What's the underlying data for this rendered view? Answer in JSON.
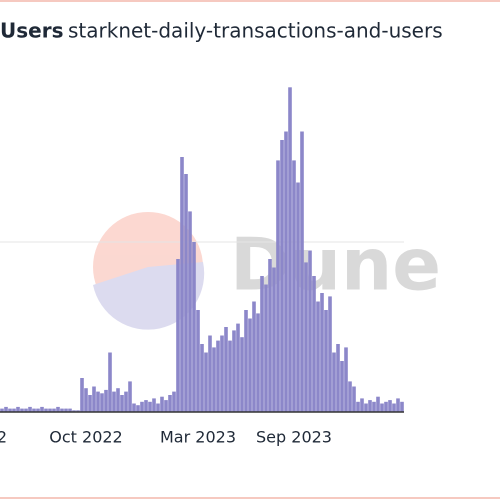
{
  "title": "Users",
  "subtitle": "starknet-daily-transactions-and-users",
  "watermark": "Dune",
  "chart_data": {
    "type": "bar",
    "color": "#8c87c9",
    "categories": [
      "2",
      null,
      null,
      null,
      null,
      null,
      null,
      null,
      null,
      null,
      null,
      null,
      null,
      null,
      null,
      null,
      null,
      null,
      null,
      null,
      null,
      "Oct 2022",
      null,
      null,
      null,
      null,
      null,
      null,
      null,
      null,
      null,
      null,
      null,
      null,
      null,
      null,
      null,
      null,
      null,
      null,
      null,
      null,
      null,
      null,
      null,
      null,
      null,
      null,
      null,
      "Mar 2023",
      null,
      null,
      null,
      null,
      null,
      null,
      null,
      null,
      null,
      null,
      null,
      null,
      null,
      null,
      null,
      null,
      null,
      null,
      null,
      null,
      null,
      null,
      null,
      "Sep 2023",
      null,
      null,
      null,
      null,
      null,
      null,
      null,
      null,
      null,
      null,
      null,
      null,
      null,
      null,
      null,
      null,
      null,
      null,
      null,
      null,
      null,
      null,
      null,
      null,
      null,
      null,
      null
    ],
    "values": [
      2,
      3,
      2,
      2,
      3,
      2,
      2,
      3,
      2,
      2,
      3,
      2,
      2,
      2,
      3,
      2,
      2,
      2,
      1,
      1,
      20,
      14,
      10,
      15,
      12,
      11,
      13,
      35,
      12,
      14,
      10,
      12,
      18,
      5,
      4,
      6,
      7,
      6,
      8,
      5,
      9,
      7,
      10,
      12,
      90,
      150,
      140,
      118,
      100,
      60,
      40,
      35,
      45,
      38,
      42,
      45,
      50,
      42,
      48,
      52,
      44,
      60,
      55,
      65,
      58,
      80,
      75,
      90,
      85,
      148,
      160,
      165,
      191,
      148,
      135,
      165,
      88,
      95,
      80,
      65,
      70,
      60,
      68,
      35,
      40,
      30,
      38,
      18,
      15,
      6,
      8,
      5,
      7,
      6,
      9,
      5,
      6,
      7,
      5,
      8,
      6
    ],
    "ylim": [
      0,
      200
    ],
    "yticks": [
      100
    ],
    "grid": true
  }
}
